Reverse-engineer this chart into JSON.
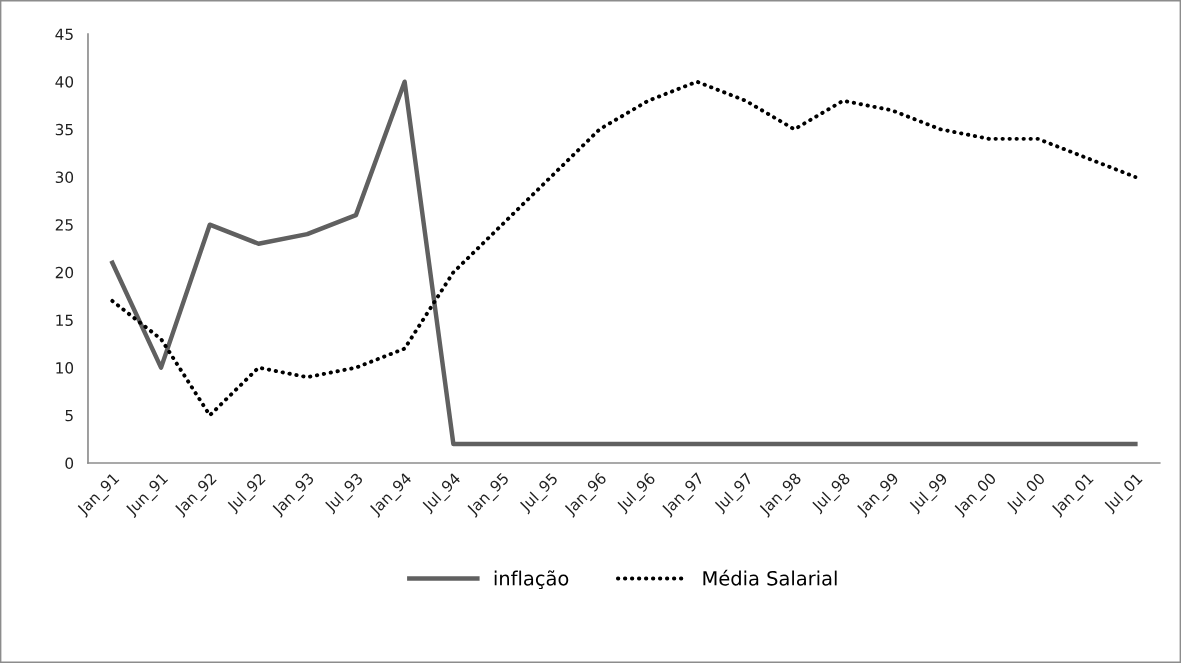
{
  "chart_data": {
    "type": "line",
    "categories": [
      "Jan_91",
      "Jun_91",
      "Jan_92",
      "Jul_92",
      "Jan_93",
      "Jul_93",
      "Jan_94",
      "Jul_94",
      "Jan_95",
      "Jul_95",
      "Jan_96",
      "Jul_96",
      "Jan_97",
      "Jul_97",
      "Jan_98",
      "Jul_98",
      "Jan_99",
      "Jul_99",
      "Jan_00",
      "Jul_00",
      "Jan_01",
      "Jul_01"
    ],
    "series": [
      {
        "name": "inflação",
        "color": "#606060",
        "line_style": "solid",
        "values": [
          21,
          10,
          25,
          23,
          24,
          26,
          40,
          2,
          2,
          2,
          2,
          2,
          2,
          2,
          2,
          2,
          2,
          2,
          2,
          2,
          2,
          2
        ]
      },
      {
        "name": "Média Salarial",
        "color": "#000000",
        "line_style": "dotted",
        "values": [
          17,
          13,
          5,
          10,
          9,
          10,
          12,
          20,
          25,
          30,
          35,
          38,
          40,
          38,
          35,
          38,
          37,
          35,
          34,
          34,
          32,
          30
        ]
      }
    ],
    "ylim": [
      0,
      45
    ],
    "yticks": [
      0,
      5,
      10,
      15,
      20,
      25,
      30,
      35,
      40,
      45
    ],
    "grid": false,
    "legend": "bottom",
    "marker": "none"
  }
}
